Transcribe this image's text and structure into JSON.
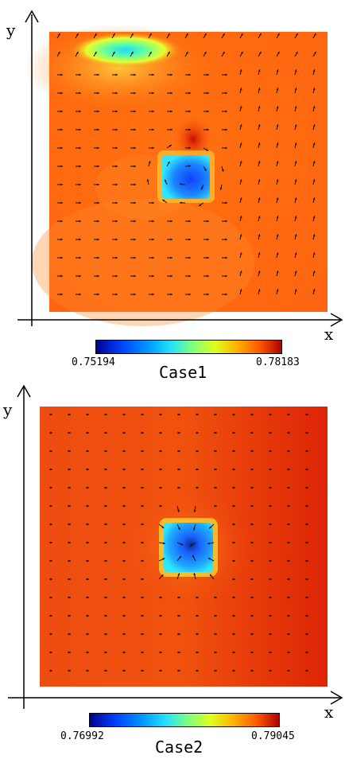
{
  "panels": [
    {
      "axes": {
        "x_label": "x",
        "y_label": "y"
      },
      "field": {
        "background_color": "#ff7a14",
        "obstacle": {
          "inner_color": "#1a6dff",
          "outer_color": "#2fe7ff"
        },
        "jet": {
          "color": "#1aefb0"
        }
      },
      "colorbar": {
        "min_label": "0.75194",
        "max_label": "0.78183"
      },
      "case_label": "Case1"
    },
    {
      "axes": {
        "x_label": "x",
        "y_label": "y"
      },
      "field": {
        "background_color": "#ef4a0e",
        "obstacle": {
          "inner_color": "#1a6dff",
          "outer_color": "#2fe7ff"
        }
      },
      "colorbar": {
        "min_label": "0.76992",
        "max_label": "0.79045"
      },
      "case_label": "Case2"
    }
  ]
}
